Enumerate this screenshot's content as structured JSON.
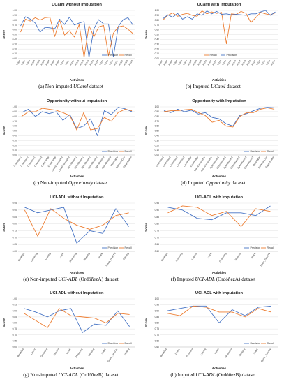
{
  "colors": {
    "precision": "#4472C4",
    "recall": "#ED7D31",
    "grid": "#d9d9d9",
    "axis": "#bfbfbf"
  },
  "chart_data": [
    {
      "type": "line",
      "title": "UCamI without Imputation",
      "xlabel": "Activities",
      "ylabel": "Score",
      "ylim": [
        0.0,
        1.0
      ],
      "yticks": [
        "0.00",
        "0.10",
        "0.20",
        "0.30",
        "0.40",
        "0.50",
        "0.60",
        "0.70",
        "0.80",
        "0.90",
        "1.00"
      ],
      "categories": [
        "Act01",
        "Act02",
        "Act03",
        "Act04",
        "Act05",
        "Act06",
        "Act07",
        "Act08",
        "Act09",
        "Act10",
        "Act11",
        "Act12",
        "Act13",
        "Act14",
        "Act15",
        "Act16",
        "Act17",
        "Act18",
        "Act19",
        "Act20",
        "Act21",
        "Act22",
        "Act23",
        "Act24"
      ],
      "series": [
        {
          "name": "Precision",
          "values": [
            0.68,
            0.87,
            0.82,
            0.74,
            0.55,
            0.65,
            0.64,
            0.62,
            0.82,
            0.71,
            0.86,
            0.7,
            0.74,
            0.77,
            0.02,
            0.62,
            0.81,
            0.72,
            0.72,
            0.04,
            0.67,
            0.81,
            0.85,
            0.7
          ]
        },
        {
          "name": "Recall",
          "values": [
            0.55,
            0.82,
            0.78,
            0.85,
            0.8,
            0.85,
            0.86,
            0.46,
            0.8,
            0.49,
            0.58,
            0.45,
            0.71,
            0.02,
            0.69,
            0.45,
            0.66,
            0.69,
            0.06,
            0.53,
            0.66,
            0.68,
            0.61,
            0.52
          ]
        }
      ],
      "legend": "bottom-right",
      "xlabel_rotated": true
    },
    {
      "type": "line",
      "title": "UCamI with Imputation",
      "xlabel": "Activities",
      "ylabel": "Score",
      "ylim": [
        0.0,
        1.0
      ],
      "yticks": [
        "0.00",
        "0.10",
        "0.20",
        "0.30",
        "0.40",
        "0.50",
        "0.60",
        "0.70",
        "0.80",
        "0.90",
        "1.00"
      ],
      "categories": [
        "Act01",
        "Act02",
        "Act03",
        "Act04",
        "Act05",
        "Act06",
        "Act07",
        "Act08",
        "Act09",
        "Act10",
        "Act11",
        "Act12",
        "Act13",
        "Act14",
        "Act15",
        "Act16",
        "Act17",
        "Act18",
        "Act19",
        "Act20",
        "Act21",
        "Act22",
        "Act23",
        "Act24"
      ],
      "series": [
        {
          "name": "Recall",
          "values": [
            0.8,
            0.9,
            0.95,
            0.88,
            0.92,
            0.94,
            0.9,
            0.88,
            0.99,
            0.93,
            0.97,
            0.94,
            0.96,
            0.31,
            0.93,
            0.92,
            0.98,
            0.94,
            0.75,
            0.85,
            0.96,
            0.93,
            0.91,
            0.95
          ]
        },
        {
          "name": "Precision",
          "values": [
            0.83,
            0.91,
            0.86,
            0.94,
            0.82,
            0.87,
            0.82,
            0.93,
            0.9,
            0.99,
            0.93,
            0.98,
            0.92,
            0.93,
            0.91,
            0.92,
            0.91,
            0.9,
            0.93,
            0.93,
            0.97,
            1.0,
            0.9,
            0.97
          ]
        }
      ],
      "legend": "bottom-center",
      "xlabel_rotated": true
    },
    {
      "type": "line",
      "title": "Opportunity without Imputation",
      "xlabel": "Activities",
      "ylabel": "Score",
      "ylim": [
        0.0,
        1.0
      ],
      "yticks": [
        "0.00",
        "0.10",
        "0.20",
        "0.30",
        "0.40",
        "0.50",
        "0.60",
        "0.70",
        "0.80",
        "0.90",
        "1.00"
      ],
      "categories": [
        "OpenDoor1",
        "OpenDoor2",
        "CloseDoor1",
        "CloseDoor2",
        "OpenFridge",
        "CloseFridge",
        "OpenDishwasher",
        "CloseDishwasher",
        "OpenDrawer1",
        "CloseDrawer1",
        "OpenDrawer2",
        "CloseDrawer2",
        "OpenDrawer3",
        "CloseDrawer3",
        "CleanTable",
        "DrinkfromCup",
        "ToggleSwitch"
      ],
      "series": [
        {
          "name": "Precision",
          "values": [
            0.88,
            0.95,
            0.8,
            0.9,
            0.86,
            0.9,
            0.72,
            0.84,
            0.55,
            0.6,
            0.75,
            0.4,
            0.92,
            0.84,
            0.99,
            0.96,
            0.9
          ]
        },
        {
          "name": "Recall",
          "values": [
            0.8,
            0.9,
            0.9,
            0.97,
            0.95,
            0.93,
            0.88,
            0.82,
            0.52,
            0.88,
            0.52,
            0.55,
            0.78,
            0.7,
            0.88,
            0.95,
            0.92
          ]
        }
      ],
      "legend": "bottom-right",
      "xlabel_rotated": true
    },
    {
      "type": "line",
      "title": "Opportunity with Imputation",
      "xlabel": "Activities",
      "ylabel": "Score",
      "ylim": [
        0.0,
        1.0
      ],
      "yticks": [
        "0.00",
        "0.10",
        "0.20",
        "0.30",
        "0.40",
        "0.50",
        "0.60",
        "0.70",
        "0.80",
        "0.90",
        "1.00"
      ],
      "categories": [
        "OpenDoor1",
        "OpenDoor2",
        "CloseDoor1",
        "CloseDoor2",
        "OpenFridge",
        "CloseFridge",
        "OpenDishwasher",
        "CloseDishwasher",
        "OpenDrawer1",
        "CloseDrawer1",
        "OpenDrawer2",
        "CloseDrawer2",
        "OpenDrawer3",
        "CloseDrawer3",
        "CleanTable",
        "DrinkfromCup",
        "ToggleSwitch"
      ],
      "series": [
        {
          "name": "Precision",
          "values": [
            0.92,
            0.88,
            0.95,
            0.9,
            0.93,
            0.85,
            0.88,
            0.78,
            0.75,
            0.65,
            0.6,
            0.82,
            0.86,
            0.92,
            0.97,
            0.99,
            0.98
          ]
        },
        {
          "name": "Recall",
          "values": [
            0.9,
            0.92,
            0.92,
            0.94,
            0.95,
            0.88,
            0.82,
            0.68,
            0.72,
            0.6,
            0.58,
            0.8,
            0.88,
            0.88,
            0.95,
            0.98,
            0.95
          ]
        }
      ],
      "legend": "bottom-right",
      "xlabel_rotated": true
    },
    {
      "type": "line",
      "title": "UCI-ADL without Imputation",
      "xlabel": "Activities",
      "ylabel": "Score",
      "ylim": [
        0.6,
        0.95
      ],
      "yticks": [
        "0.60",
        "0.65",
        "0.70",
        "0.75",
        "0.80",
        "0.85",
        "0.90",
        "0.95"
      ],
      "categories": [
        "Breakfast",
        "Grooming",
        "Leaving",
        "Lunch",
        "Showering",
        "Sleeping",
        "Snack",
        "Spare_Time/TV",
        "Toileting"
      ],
      "series": [
        {
          "name": "Precision",
          "values": [
            0.92,
            0.88,
            0.9,
            0.92,
            0.66,
            0.75,
            0.73,
            0.91,
            0.78
          ]
        },
        {
          "name": "Recall",
          "values": [
            0.9,
            0.71,
            0.91,
            0.84,
            0.79,
            0.76,
            0.79,
            0.86,
            0.88
          ]
        }
      ],
      "legend": "bottom-right",
      "xlabel_rotated": true
    },
    {
      "type": "line",
      "title": "UCI-ADL with Imputation",
      "xlabel": "Activities",
      "ylabel": "Score",
      "ylim": [
        0.6,
        0.95
      ],
      "yticks": [
        "0.60",
        "0.65",
        "0.70",
        "0.75",
        "0.80",
        "0.85",
        "0.90",
        "0.95"
      ],
      "categories": [
        "Breakfast",
        "Grooming",
        "Leaving",
        "Lunch",
        "Showering",
        "Sleeping",
        "Snack",
        "Spare_Time/TV"
      ],
      "series": [
        {
          "name": "Precision",
          "values": [
            0.92,
            0.9,
            0.84,
            0.83,
            0.88,
            0.88,
            0.86,
            0.93
          ]
        },
        {
          "name": "Recall",
          "values": [
            0.88,
            0.93,
            0.92,
            0.86,
            0.89,
            0.78,
            0.91,
            0.89
          ]
        }
      ],
      "legend": "bottom-right",
      "xlabel_rotated": true
    },
    {
      "type": "line",
      "title": "UCI-ADL without Imputation",
      "xlabel": "Activities",
      "ylabel": "Score",
      "ylim": [
        0.6,
        1.0
      ],
      "yticks": [
        "0.60",
        "0.65",
        "0.70",
        "0.75",
        "0.80",
        "0.85",
        "0.90",
        "0.95",
        "1.00"
      ],
      "categories": [
        "Breakfast",
        "Dinner",
        "Grooming",
        "Leaving",
        "Lunch",
        "Showering",
        "Sleeping",
        "Snack",
        "Spare_Time/TV",
        "Toileting"
      ],
      "series": [
        {
          "name": "Precision",
          "values": [
            0.92,
            0.89,
            0.85,
            0.9,
            0.92,
            0.72,
            0.79,
            0.78,
            0.9,
            0.77
          ]
        },
        {
          "name": "Recall",
          "values": [
            0.88,
            0.82,
            0.76,
            0.92,
            0.86,
            0.85,
            0.84,
            0.8,
            0.88,
            0.87
          ]
        }
      ],
      "legend": "bottom-right",
      "xlabel_rotated": true
    },
    {
      "type": "line",
      "title": "UCI-ADL with Imputation",
      "xlabel": "Activities",
      "ylabel": "Score",
      "ylim": [
        0.6,
        1.0
      ],
      "yticks": [
        "0.60",
        "0.65",
        "0.70",
        "0.75",
        "0.80",
        "0.85",
        "0.90",
        "0.95",
        "1.00"
      ],
      "categories": [
        "Breakfast",
        "Dinner",
        "Grooming",
        "Leaving",
        "Lunch",
        "Showering",
        "Sleeping",
        "Snack",
        "Spare_Time/TV"
      ],
      "series": [
        {
          "name": "Precision",
          "values": [
            0.9,
            0.92,
            0.94,
            0.94,
            0.8,
            0.91,
            0.86,
            0.93,
            0.94
          ]
        },
        {
          "name": "Recall",
          "values": [
            0.88,
            0.86,
            0.94,
            0.93,
            0.89,
            0.89,
            0.85,
            0.92,
            0.89
          ]
        }
      ],
      "legend": "bottom-right",
      "xlabel_rotated": true
    }
  ],
  "captions": [
    {
      "prefix": "(a) Non-imputed ",
      "name": "UCamI",
      "suffix": " dataset"
    },
    {
      "prefix": "(b) Imputed ",
      "name": "UCamI",
      "suffix": " dataset"
    },
    {
      "prefix": "(c) Non-imputed ",
      "name": "Opportunity",
      "suffix": " dataset"
    },
    {
      "prefix": "(d) Imputed ",
      "name": "Opportunity",
      "suffix": " dataset"
    },
    {
      "prefix": "(e) Non-imputed ",
      "name": "UCI-ADL",
      "suffix": " (OrdóñezA) dataset"
    },
    {
      "prefix": "(f) Imputed ",
      "name": "UCI-ADL",
      "suffix": " (OrdóñezA) dataset"
    },
    {
      "prefix": "(g) Non-imputed ",
      "name": "UCI-ADL",
      "suffix": " (OrdóñezB) dataset"
    },
    {
      "prefix": "(h) Imputed ",
      "name": "UCI-ADL",
      "suffix": " (OrdóñezB) dataset"
    }
  ]
}
